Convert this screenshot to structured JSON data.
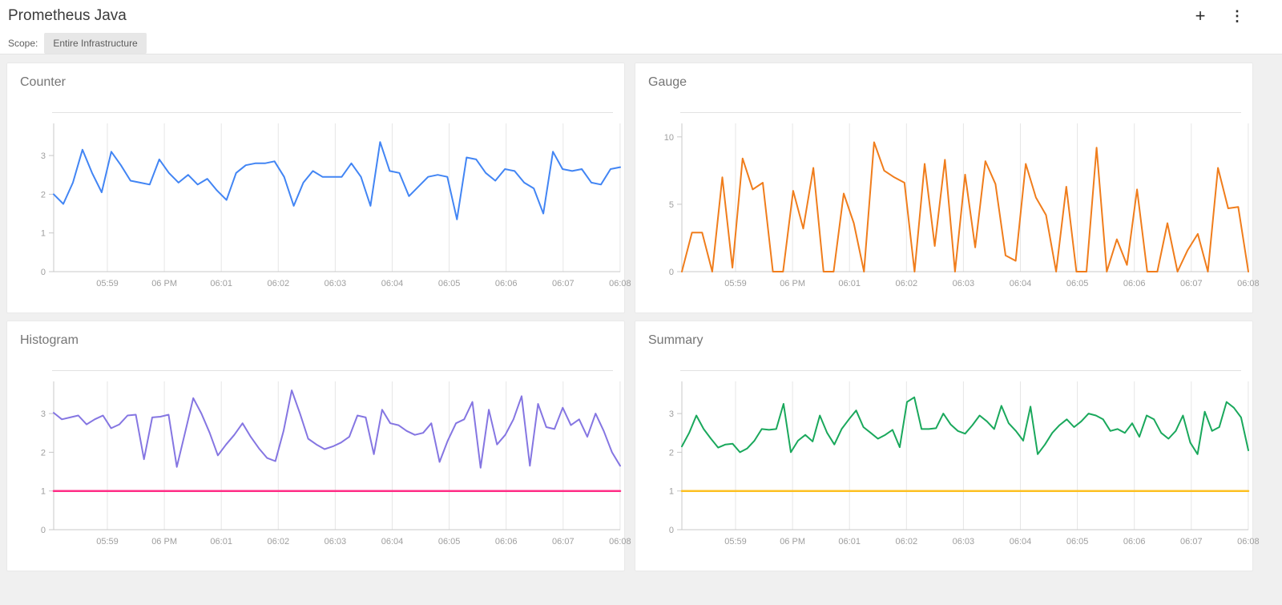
{
  "header": {
    "title": "Prometheus Java",
    "scope_label": "Scope:",
    "scope_value": "Entire Infrastructure",
    "icons": {
      "add": "+",
      "more": "⋮"
    }
  },
  "colors": {
    "counter_line": "#4285f4",
    "gauge_line": "#f07d1c",
    "histogram_line": "#8576e2",
    "histogram_baseline": "#ff2d85",
    "summary_line": "#1aa85c",
    "summary_baseline": "#fdc022",
    "gridline": "#e6e6e6",
    "axis": "#c8c8c8",
    "tick_text": "#9e9e9e",
    "card_title_text": "#757575"
  },
  "chart_data": [
    {
      "type": "line",
      "title": "Counter",
      "x_ticks": [
        "05:59",
        "06 PM",
        "06:01",
        "06:02",
        "06:03",
        "06:04",
        "06:05",
        "06:06",
        "06:07",
        "06:08"
      ],
      "y_ticks": [
        0,
        1,
        2,
        3
      ],
      "ylim": [
        0,
        3.83
      ],
      "grid": "vertical-only",
      "legend": "none",
      "series": [
        {
          "name": "main",
          "color": "#4285f4",
          "width": 2,
          "values": [
            2.0,
            1.75,
            2.3,
            3.15,
            2.55,
            2.05,
            3.1,
            2.75,
            2.35,
            2.3,
            2.25,
            2.9,
            2.55,
            2.3,
            2.5,
            2.25,
            2.4,
            2.1,
            1.85,
            2.55,
            2.75,
            2.8,
            2.8,
            2.85,
            2.45,
            1.7,
            2.3,
            2.6,
            2.45,
            2.45,
            2.45,
            2.8,
            2.45,
            1.7,
            3.35,
            2.6,
            2.55,
            1.95,
            2.2,
            2.45,
            2.5,
            2.45,
            1.35,
            2.95,
            2.9,
            2.55,
            2.35,
            2.65,
            2.6,
            2.3,
            2.15,
            1.5,
            3.1,
            2.65,
            2.6,
            2.65,
            2.3,
            2.25,
            2.65,
            2.7
          ]
        }
      ]
    },
    {
      "type": "line",
      "title": "Gauge",
      "x_ticks": [
        "05:59",
        "06 PM",
        "06:01",
        "06:02",
        "06:03",
        "06:04",
        "06:05",
        "06:06",
        "06:07",
        "06:08"
      ],
      "y_ticks": [
        0,
        5,
        10
      ],
      "ylim": [
        0,
        11
      ],
      "grid": "vertical-only",
      "legend": "none",
      "series": [
        {
          "name": "main",
          "color": "#f07d1c",
          "width": 2,
          "values": [
            0,
            2.9,
            2.9,
            0,
            7.0,
            0.3,
            8.4,
            6.1,
            6.6,
            0,
            0,
            6.0,
            3.2,
            7.7,
            0,
            0,
            5.8,
            3.6,
            0,
            9.6,
            7.5,
            7.0,
            6.6,
            0,
            8.0,
            1.9,
            8.3,
            0,
            7.2,
            1.8,
            8.2,
            6.5,
            1.2,
            0.8,
            8.0,
            5.5,
            4.2,
            0,
            6.3,
            0,
            0,
            9.2,
            0,
            2.4,
            0.5,
            6.1,
            0,
            0,
            3.6,
            0,
            1.6,
            2.8,
            0,
            7.7,
            4.7,
            4.8,
            0
          ]
        }
      ]
    },
    {
      "type": "line",
      "title": "Histogram",
      "x_ticks": [
        "05:59",
        "06 PM",
        "06:01",
        "06:02",
        "06:03",
        "06:04",
        "06:05",
        "06:06",
        "06:07",
        "06:08"
      ],
      "y_ticks": [
        0,
        1,
        2,
        3
      ],
      "ylim": [
        0,
        3.83
      ],
      "grid": "vertical-only",
      "legend": "none",
      "series": [
        {
          "name": "main",
          "color": "#8576e2",
          "width": 2,
          "values": [
            3.02,
            2.85,
            2.9,
            2.95,
            2.72,
            2.85,
            2.95,
            2.62,
            2.72,
            2.95,
            2.97,
            1.82,
            2.9,
            2.92,
            2.97,
            1.62,
            2.5,
            3.4,
            3.0,
            2.5,
            1.92,
            2.2,
            2.45,
            2.75,
            2.4,
            2.1,
            1.85,
            1.77,
            2.55,
            3.6,
            3.0,
            2.35,
            2.2,
            2.08,
            2.15,
            2.25,
            2.4,
            2.95,
            2.9,
            1.95,
            3.1,
            2.75,
            2.7,
            2.55,
            2.45,
            2.5,
            2.75,
            1.75,
            2.3,
            2.75,
            2.85,
            3.3,
            1.6,
            3.1,
            2.2,
            2.45,
            2.85,
            3.45,
            1.65,
            3.25,
            2.65,
            2.6,
            3.15,
            2.7,
            2.85,
            2.4,
            3.0,
            2.55,
            2.0,
            1.65
          ]
        },
        {
          "name": "baseline",
          "color": "#ff2d85",
          "width": 2.5,
          "values": [
            1,
            1
          ],
          "flat": true
        }
      ]
    },
    {
      "type": "line",
      "title": "Summary",
      "x_ticks": [
        "05:59",
        "06 PM",
        "06:01",
        "06:02",
        "06:03",
        "06:04",
        "06:05",
        "06:06",
        "06:07",
        "06:08"
      ],
      "y_ticks": [
        0,
        1,
        2,
        3
      ],
      "ylim": [
        0,
        3.83
      ],
      "grid": "vertical-only",
      "legend": "none",
      "series": [
        {
          "name": "main",
          "color": "#1aa85c",
          "width": 2,
          "values": [
            2.15,
            2.5,
            2.95,
            2.6,
            2.35,
            2.12,
            2.2,
            2.22,
            2.0,
            2.1,
            2.3,
            2.6,
            2.58,
            2.6,
            3.25,
            2.0,
            2.3,
            2.45,
            2.28,
            2.95,
            2.5,
            2.2,
            2.6,
            2.85,
            3.08,
            2.65,
            2.5,
            2.35,
            2.45,
            2.58,
            2.13,
            3.3,
            3.42,
            2.6,
            2.6,
            2.62,
            3.0,
            2.72,
            2.55,
            2.48,
            2.7,
            2.95,
            2.8,
            2.6,
            3.2,
            2.75,
            2.55,
            2.3,
            3.18,
            1.95,
            2.2,
            2.5,
            2.7,
            2.85,
            2.65,
            2.8,
            3.0,
            2.95,
            2.85,
            2.55,
            2.6,
            2.5,
            2.75,
            2.4,
            2.95,
            2.85,
            2.5,
            2.35,
            2.55,
            2.95,
            2.25,
            1.95,
            3.05,
            2.55,
            2.65,
            3.3,
            3.15,
            2.9,
            2.05
          ]
        },
        {
          "name": "baseline",
          "color": "#fdc022",
          "width": 2.5,
          "values": [
            1,
            1
          ],
          "flat": true
        }
      ]
    }
  ]
}
